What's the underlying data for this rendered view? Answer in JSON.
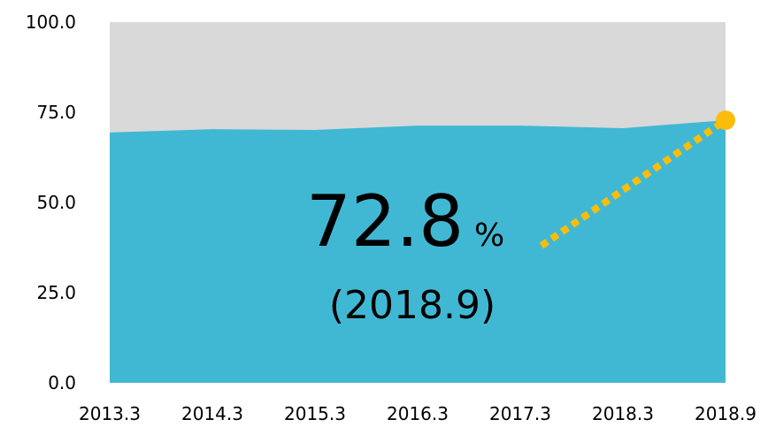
{
  "chart_data": {
    "type": "area",
    "categories": [
      "2013.3",
      "2014.3",
      "2015.3",
      "2016.3",
      "2017.3",
      "2018.3",
      "2018.9"
    ],
    "series": [
      {
        "name": null,
        "color": "#41b8d3",
        "values": [
          69.4,
          70.3,
          70.1,
          71.3,
          71.3,
          70.6,
          72.8
        ]
      }
    ],
    "background_color": "#d9d9d9",
    "marker_color": "#fbbd0a",
    "ylim": [
      0,
      100
    ],
    "yticks": [
      {
        "value": 0,
        "label": "0.0"
      },
      {
        "value": 25,
        "label": "25.0"
      },
      {
        "value": 50,
        "label": "50.0"
      },
      {
        "value": 75,
        "label": "75.0"
      },
      {
        "value": 100,
        "label": "100.0"
      }
    ],
    "grid": false,
    "annotation": {
      "text": "72.8",
      "unit": "%",
      "note": "(2018.9)"
    }
  }
}
